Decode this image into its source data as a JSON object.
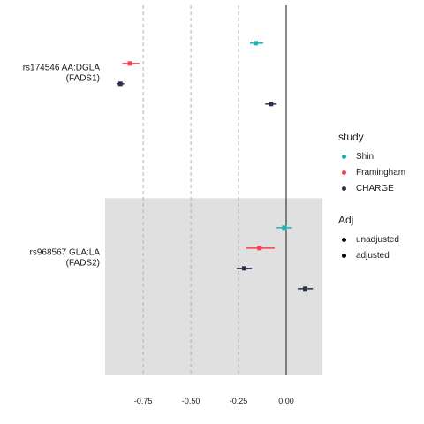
{
  "chart_data": {
    "type": "forest",
    "xlim": [
      -0.95,
      0.19
    ],
    "x_ticks": [
      -0.75,
      -0.5,
      -0.25,
      0
    ],
    "x_tick_labels": [
      "-0.75",
      "-0.50",
      "-0.25",
      "0.00"
    ],
    "dashed_reference_lines": [
      -0.75,
      -0.5,
      -0.25
    ],
    "solid_reference_line": 0,
    "groups": [
      {
        "label_line1": "rs174546 AA:DGLA",
        "label_line2": "(FADS1)",
        "shaded": false,
        "points": [
          {
            "study": "Shin",
            "estimate": -0.16,
            "low": -0.19,
            "high": -0.12
          },
          {
            "study": "Framingham",
            "estimate": -0.82,
            "low": -0.86,
            "high": -0.77
          },
          {
            "study": "CHARGE",
            "estimate": -0.87,
            "low": -0.89,
            "high": -0.85
          },
          {
            "study": "CHARGE",
            "estimate": -0.08,
            "low": -0.11,
            "high": -0.05
          }
        ]
      },
      {
        "label_line1": "rs968567 GLA:LA",
        "label_line2": "(FADS2)",
        "shaded": true,
        "points": [
          {
            "study": "Shin",
            "estimate": -0.01,
            "low": -0.05,
            "high": 0.03
          },
          {
            "study": "Framingham",
            "estimate": -0.14,
            "low": -0.21,
            "high": -0.06
          },
          {
            "study": "CHARGE",
            "estimate": -0.22,
            "low": -0.26,
            "high": -0.18
          },
          {
            "study": "CHARGE",
            "estimate": 0.1,
            "low": 0.06,
            "high": 0.14
          }
        ]
      }
    ],
    "legend": {
      "study_title": "study",
      "study_items": [
        {
          "label": "Shin",
          "color": "#1ab3b3"
        },
        {
          "label": "Framingham",
          "color": "#f5404f"
        },
        {
          "label": "CHARGE",
          "color": "#28304a"
        }
      ],
      "adj_title": "Adj",
      "adj_items": [
        {
          "label": "unadjusted",
          "color": "#000000"
        },
        {
          "label": "adjusted",
          "color": "#000000"
        }
      ]
    },
    "colors": {
      "Shin": "#1ab3b3",
      "Framingham": "#f5404f",
      "CHARGE": "#28304a",
      "shade": "#e0e0e0",
      "grid": "#b3b3b3",
      "zero_line": "#1a1a1a"
    }
  }
}
